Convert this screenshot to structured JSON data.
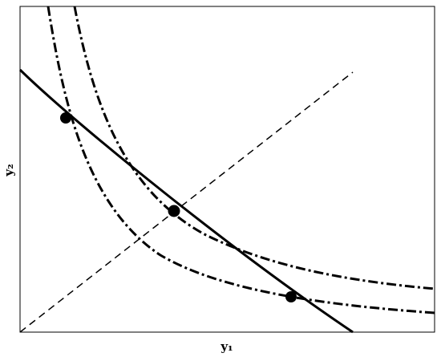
{
  "axes": {
    "x_label": "y₁",
    "y_label": "y₂"
  }
}
